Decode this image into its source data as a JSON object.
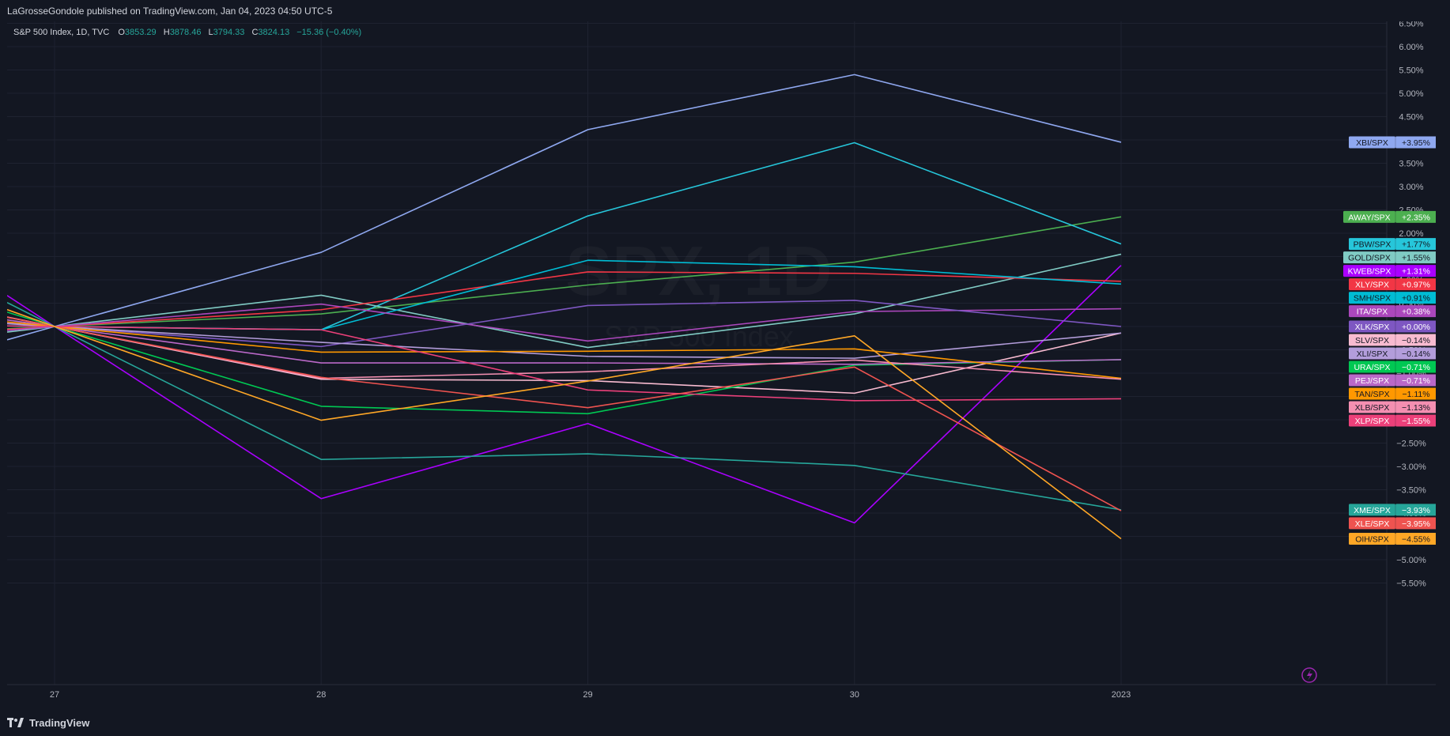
{
  "header": {
    "published": "LaGrosseGondole published on TradingView.com, Jan 04, 2023 04:50 UTC-5"
  },
  "legend": {
    "symbol": "S&P 500 Index, 1D, TVC",
    "o_label": "O",
    "o_value": "3853.29",
    "h_label": "H",
    "h_value": "3878.46",
    "l_label": "L",
    "l_value": "3794.33",
    "c_label": "C",
    "c_value": "3824.13",
    "change": "−15.36 (−0.40%)"
  },
  "watermark": {
    "title": "SPX, 1D",
    "subtitle": "S&P 500 Index"
  },
  "footer": {
    "brand": "TradingView"
  },
  "colors": {
    "background": "#131722",
    "grid": "#1e2230",
    "axis_text": "#b2b5be",
    "value_up": "#26a69a",
    "legend_text": "#d1d4dc"
  },
  "chart_data": {
    "type": "line",
    "x": [
      "27",
      "28",
      "29",
      "30",
      "2023"
    ],
    "ylim": [
      -5.5,
      6.5
    ],
    "y_ticks": [
      "6.50%",
      "6.00%",
      "5.50%",
      "5.00%",
      "4.50%",
      "4.00%",
      "3.50%",
      "3.00%",
      "2.50%",
      "2.00%",
      "1.50%",
      "1.00%",
      "0.50%",
      "0.00%",
      "−0.50%",
      "−1.00%",
      "−1.50%",
      "−2.00%",
      "−2.50%",
      "−3.00%",
      "−3.50%",
      "−4.00%",
      "−4.50%",
      "−5.00%",
      "−5.50%"
    ],
    "grid": true,
    "series": [
      {
        "name": "XBI/SPX",
        "label": "+3.95%",
        "color": "#8fa8f0",
        "values": [
          0,
          1.59,
          4.22,
          5.4,
          3.95
        ]
      },
      {
        "name": "AWAY/SPX",
        "label": "+2.35%",
        "color": "#4caf50",
        "values": [
          0,
          0.27,
          0.89,
          1.38,
          2.35
        ]
      },
      {
        "name": "PBW/SPX",
        "label": "+1.77%",
        "color": "#26c6da",
        "values": [
          0,
          -0.07,
          2.37,
          3.94,
          1.77
        ]
      },
      {
        "name": "GOLD/SPX",
        "label": "+1.55%",
        "color": "#80cbc4",
        "values": [
          0,
          0.67,
          -0.45,
          0.27,
          1.55
        ]
      },
      {
        "name": "KWEB/SPX",
        "label": "+1.31%",
        "color": "#aa00ff",
        "values": [
          0,
          -3.69,
          -2.08,
          -4.21,
          1.31
        ]
      },
      {
        "name": "XLY/SPX",
        "label": "+0.97%",
        "color": "#f23645",
        "values": [
          0,
          0.36,
          1.17,
          1.14,
          0.97
        ]
      },
      {
        "name": "SMH/SPX",
        "label": "+0.91%",
        "color": "#00bcd4",
        "values": [
          0,
          -0.07,
          1.42,
          1.28,
          0.91
        ]
      },
      {
        "name": "ITA/SPX",
        "label": "+0.38%",
        "color": "#ab47bc",
        "values": [
          0,
          0.48,
          -0.31,
          0.32,
          0.38
        ]
      },
      {
        "name": "XLK/SPX",
        "label": "+0.00%",
        "color": "#7e57c2",
        "values": [
          0,
          -0.43,
          0.45,
          0.56,
          0.0
        ]
      },
      {
        "name": "SLV/SPX",
        "label": "−0.14%",
        "color": "#f8bbd0",
        "values": [
          0,
          -1.13,
          -1.16,
          -1.43,
          -0.14
        ]
      },
      {
        "name": "XLI/SPX",
        "label": "−0.14%",
        "color": "#b39ddb",
        "values": [
          0,
          -0.34,
          -0.64,
          -0.68,
          -0.14
        ]
      },
      {
        "name": "URA/SPX",
        "label": "−0.71%",
        "color": "#00c853",
        "values": [
          0,
          -1.71,
          -1.87,
          -0.83,
          -0.71
        ]
      },
      {
        "name": "PEJ/SPX",
        "label": "−0.71%",
        "color": "#ba68c8",
        "values": [
          0,
          -0.78,
          -0.78,
          -0.81,
          -0.71
        ]
      },
      {
        "name": "TAN/SPX",
        "label": "−1.11%",
        "color": "#ff9800",
        "values": [
          0,
          -0.55,
          -0.53,
          -0.48,
          -1.11
        ]
      },
      {
        "name": "XLB/SPX",
        "label": "−1.13%",
        "color": "#f48fb1",
        "values": [
          0,
          -1.11,
          -0.97,
          -0.72,
          -1.13
        ]
      },
      {
        "name": "XLP/SPX",
        "label": "−1.55%",
        "color": "#ec407a",
        "values": [
          0,
          -0.07,
          -1.36,
          -1.59,
          -1.55
        ]
      },
      {
        "name": "XME/SPX",
        "label": "−3.93%",
        "color": "#26a69a",
        "values": [
          0,
          -2.85,
          -2.73,
          -2.98,
          -3.93
        ]
      },
      {
        "name": "XLE/SPX",
        "label": "−3.95%",
        "color": "#ef5350",
        "values": [
          0,
          -1.09,
          -1.74,
          -0.87,
          -3.95
        ]
      },
      {
        "name": "OIH/SPX",
        "label": "−4.55%",
        "color": "#ffa726",
        "values": [
          0,
          -2.01,
          -1.17,
          -0.2,
          -4.55
        ]
      }
    ]
  }
}
